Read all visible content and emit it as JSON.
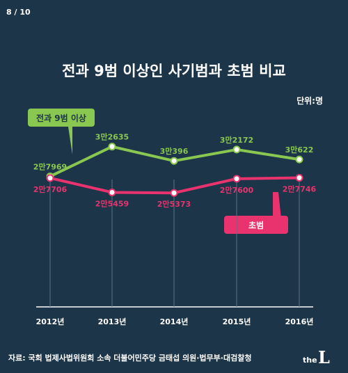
{
  "page_counter": "8 / 10",
  "unit": "단위:명",
  "footer": {
    "source": "자료: 국회 법제사법위원회 소속 더불어민주당 금태섭 의원·법무부·대검찰청",
    "logo_text": "theL"
  },
  "colors": {
    "background": "#1d3548",
    "series_1": "#8ac751",
    "series_2": "#e8336f",
    "axis": "#ffffff"
  },
  "chart_data": {
    "type": "line",
    "title": "전과 9범 이상인 사기범과 초범 비교",
    "xlabel": "",
    "ylabel": "",
    "grid": false,
    "categories": [
      "2012년",
      "2013년",
      "2014년",
      "2015년",
      "2016년"
    ],
    "series": [
      {
        "name": "전과 9범 이상",
        "values": [
          27969,
          32635,
          30396,
          32172,
          30622
        ],
        "data_labels": [
          "2만7969",
          "3만2635",
          "3만396",
          "3만2172",
          "3만622"
        ]
      },
      {
        "name": "초범",
        "values": [
          27706,
          25459,
          25373,
          27600,
          27746
        ],
        "data_labels": [
          "2만7706",
          "2만5459",
          "2만5373",
          "2만7600",
          "2만7746"
        ]
      }
    ]
  }
}
